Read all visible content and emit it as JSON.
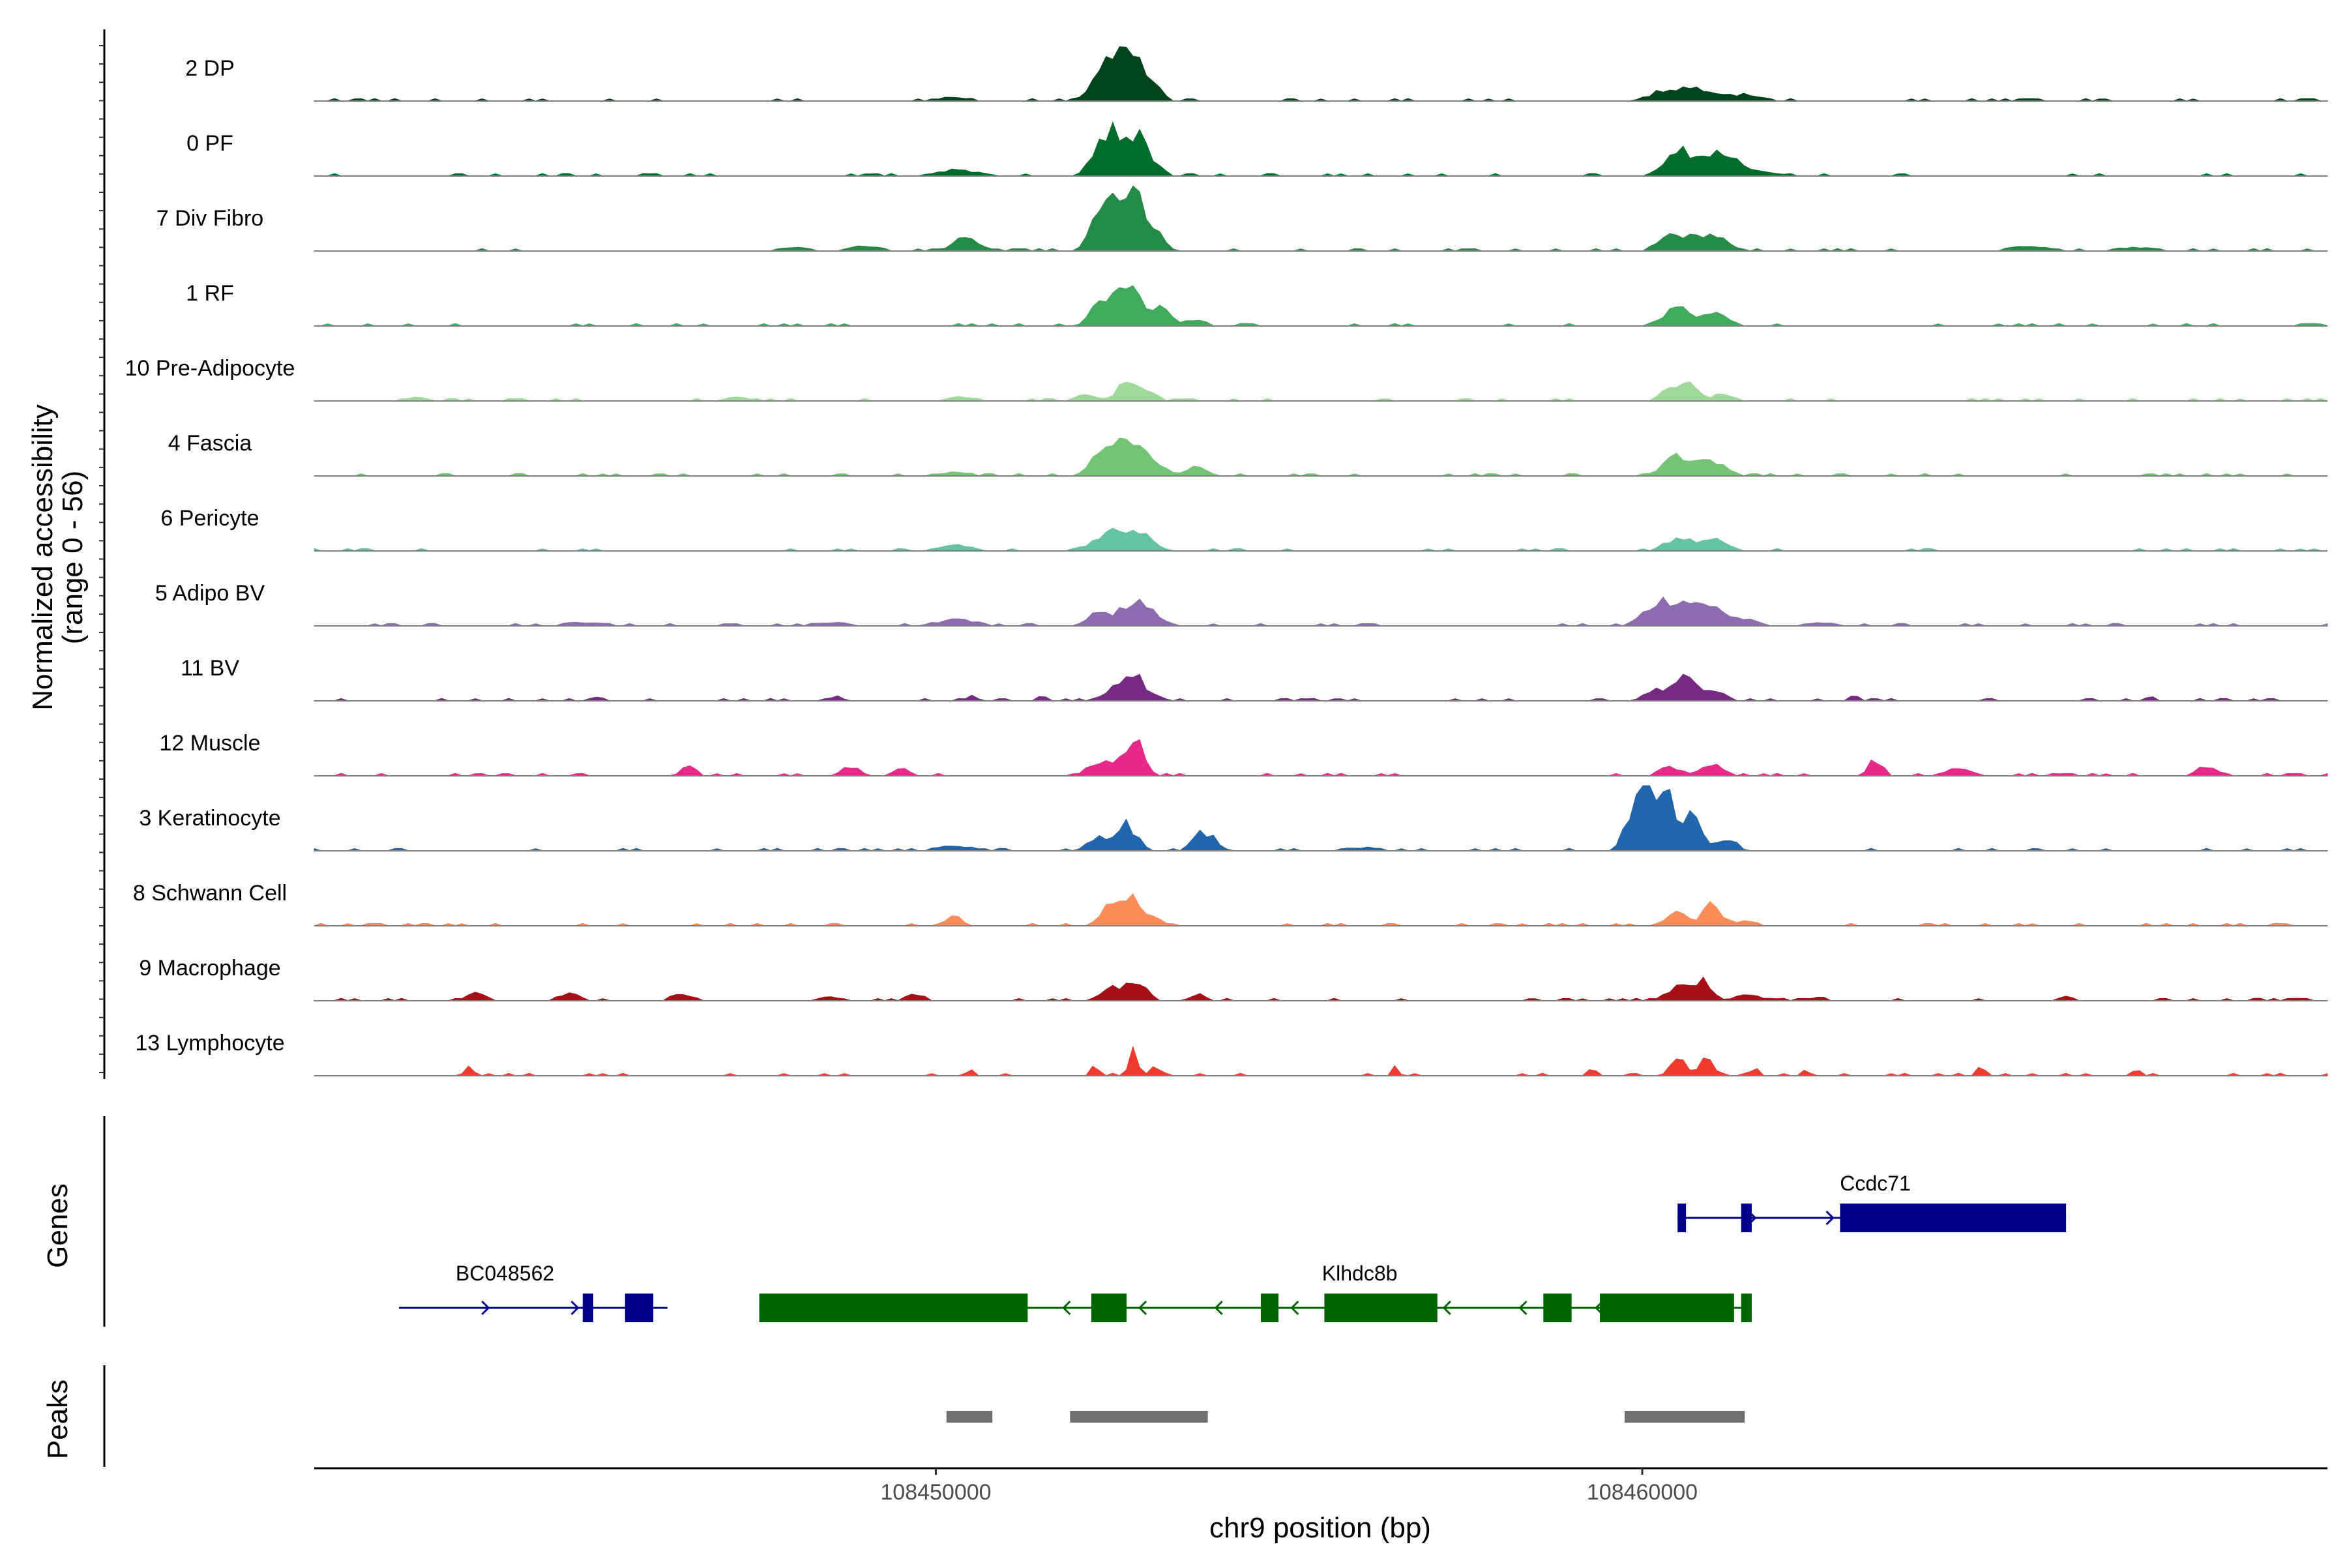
{
  "chart_data": {
    "type": "area",
    "title": "",
    "xlabel": "chr9 position (bp)",
    "ylabel_line1": "Normalized accessibility",
    "ylabel_line2": "(range 0 - 56)",
    "ylim": [
      0,
      56
    ],
    "xlim": [
      108441200,
      108469700
    ],
    "x_ticks": [
      108450000,
      108460000
    ],
    "x_tick_labels": [
      "108450000",
      "108460000"
    ],
    "tracks": [
      {
        "name": "2 DP",
        "color": "#00441b",
        "peaks": [
          [
            108452400,
            30,
            180
          ],
          [
            108452750,
            34,
            160
          ],
          [
            108453050,
            12,
            150
          ],
          [
            108450250,
            3,
            300
          ],
          [
            108460400,
            10,
            250
          ],
          [
            108460900,
            9,
            230
          ],
          [
            108461500,
            5,
            250
          ]
        ]
      },
      {
        "name": "0 PF",
        "color": "#006d2c",
        "peaks": [
          [
            108452400,
            36,
            170
          ],
          [
            108452780,
            32,
            170
          ],
          [
            108453050,
            10,
            140
          ],
          [
            108450300,
            5,
            320
          ],
          [
            108460500,
            22,
            200
          ],
          [
            108461100,
            20,
            200
          ],
          [
            108461600,
            4,
            300
          ]
        ]
      },
      {
        "name": "7 Div Fibro",
        "color": "#238b45",
        "peaks": [
          [
            108452400,
            46,
            160
          ],
          [
            108452800,
            52,
            140
          ],
          [
            108453100,
            16,
            130
          ],
          [
            108450450,
            12,
            180
          ],
          [
            108460450,
            16,
            200
          ],
          [
            108461000,
            16,
            200
          ],
          [
            108449000,
            4,
            250
          ],
          [
            108448000,
            3,
            250
          ],
          [
            108465500,
            4,
            300
          ],
          [
            108467000,
            3,
            300
          ]
        ]
      },
      {
        "name": "1 RF",
        "color": "#41ab5d",
        "peaks": [
          [
            108452400,
            24,
            170
          ],
          [
            108452750,
            34,
            150
          ],
          [
            108453150,
            16,
            140
          ],
          [
            108453650,
            6,
            150
          ],
          [
            108460500,
            16,
            200
          ],
          [
            108461050,
            12,
            160
          ]
        ]
      },
      {
        "name": "10 Pre-Adipocyte",
        "color": "#a1d99b",
        "peaks": [
          [
            108452100,
            5,
            150
          ],
          [
            108452700,
            14,
            150
          ],
          [
            108453000,
            6,
            150
          ],
          [
            108460400,
            10,
            150
          ],
          [
            108460650,
            16,
            120
          ],
          [
            108461150,
            6,
            150
          ],
          [
            108450350,
            4,
            200
          ],
          [
            108442600,
            3,
            200
          ],
          [
            108447200,
            3,
            200
          ]
        ]
      },
      {
        "name": "4 Fascia",
        "color": "#74c476",
        "peaks": [
          [
            108452400,
            26,
            180
          ],
          [
            108452750,
            30,
            170
          ],
          [
            108453100,
            10,
            150
          ],
          [
            108453700,
            8,
            150
          ],
          [
            108460500,
            16,
            200
          ],
          [
            108461000,
            12,
            200
          ],
          [
            108450250,
            3,
            300
          ]
        ]
      },
      {
        "name": "6 Pericyte",
        "color": "#66c2a4",
        "peaks": [
          [
            108452350,
            10,
            200
          ],
          [
            108452650,
            16,
            170
          ],
          [
            108453000,
            10,
            150
          ],
          [
            108450300,
            5,
            250
          ],
          [
            108460500,
            10,
            200
          ],
          [
            108461000,
            10,
            200
          ]
        ]
      },
      {
        "name": "5 Adipo BV",
        "color": "#8c6bb1",
        "peaks": [
          [
            108452350,
            12,
            170
          ],
          [
            108452800,
            22,
            150
          ],
          [
            108453100,
            8,
            140
          ],
          [
            108450300,
            5,
            300
          ],
          [
            108460300,
            20,
            250
          ],
          [
            108460850,
            18,
            220
          ],
          [
            108461400,
            6,
            220
          ],
          [
            108445000,
            3,
            300
          ],
          [
            108448500,
            3,
            300
          ],
          [
            108462500,
            3,
            250
          ]
        ]
      },
      {
        "name": "11 BV",
        "color": "#762a83",
        "peaks": [
          [
            108452500,
            10,
            150
          ],
          [
            108452800,
            24,
            120
          ],
          [
            108453100,
            6,
            100
          ],
          [
            108460200,
            10,
            150
          ],
          [
            108460600,
            24,
            130
          ],
          [
            108461000,
            10,
            150
          ],
          [
            108448600,
            4,
            80
          ],
          [
            108450500,
            4,
            80
          ],
          [
            108451500,
            4,
            80
          ],
          [
            108445200,
            4,
            80
          ],
          [
            108463000,
            4,
            80
          ],
          [
            108467200,
            4,
            80
          ]
        ]
      },
      {
        "name": "12 Muscle",
        "color": "#e7298a",
        "peaks": [
          [
            108452300,
            12,
            150
          ],
          [
            108452850,
            26,
            110
          ],
          [
            108452600,
            14,
            100
          ],
          [
            108448800,
            8,
            120
          ],
          [
            108449500,
            6,
            120
          ],
          [
            108446500,
            10,
            100
          ],
          [
            108461000,
            10,
            150
          ],
          [
            108460400,
            8,
            150
          ],
          [
            108463300,
            14,
            100
          ],
          [
            108464500,
            8,
            150
          ],
          [
            108468000,
            8,
            150
          ]
        ]
      },
      {
        "name": "3 Keratinocyte",
        "color": "#2166ac",
        "peaks": [
          [
            108460000,
            56,
            170
          ],
          [
            108460350,
            40,
            140
          ],
          [
            108460700,
            30,
            130
          ],
          [
            108461200,
            12,
            120
          ],
          [
            108452700,
            22,
            150
          ],
          [
            108452300,
            10,
            150
          ],
          [
            108453800,
            16,
            150
          ],
          [
            108450300,
            4,
            300
          ],
          [
            108456000,
            3,
            300
          ]
        ]
      },
      {
        "name": "8 Schwann Cell",
        "color": "#fc8d59",
        "peaks": [
          [
            108452500,
            20,
            150
          ],
          [
            108452800,
            24,
            130
          ],
          [
            108453100,
            6,
            120
          ],
          [
            108450250,
            8,
            130
          ],
          [
            108460500,
            14,
            150
          ],
          [
            108461000,
            18,
            130
          ],
          [
            108461500,
            4,
            150
          ]
        ]
      },
      {
        "name": "9 Macrophage",
        "color": "#a50f15",
        "peaks": [
          [
            108452500,
            12,
            150
          ],
          [
            108452850,
            18,
            130
          ],
          [
            108453700,
            6,
            100
          ],
          [
            108460500,
            12,
            150
          ],
          [
            108460850,
            18,
            130
          ],
          [
            108461500,
            6,
            150
          ],
          [
            108443500,
            6,
            150
          ],
          [
            108444800,
            6,
            150
          ],
          [
            108446400,
            6,
            150
          ],
          [
            108448500,
            4,
            150
          ],
          [
            108449700,
            5,
            150
          ],
          [
            108462500,
            4,
            100
          ],
          [
            108466000,
            4,
            100
          ]
        ]
      },
      {
        "name": "13 Lymphocyte",
        "color": "#ef3b2c",
        "peaks": [
          [
            108452250,
            8,
            60
          ],
          [
            108452800,
            22,
            60
          ],
          [
            108453100,
            8,
            60
          ],
          [
            108450500,
            6,
            60
          ],
          [
            108443400,
            10,
            50
          ],
          [
            108456500,
            8,
            50
          ],
          [
            108460500,
            16,
            100
          ],
          [
            108460900,
            14,
            100
          ],
          [
            108459300,
            6,
            60
          ],
          [
            108461600,
            6,
            60
          ],
          [
            108462300,
            6,
            60
          ],
          [
            108464800,
            8,
            50
          ],
          [
            108467000,
            6,
            50
          ]
        ]
      }
    ],
    "genes": {
      "title": "Genes",
      "items": [
        {
          "name": "Ccdc71",
          "strand": "+",
          "color": "#00008b",
          "start": 108460500,
          "end": 108466000,
          "row": 1,
          "exons": [
            [
              108460500,
              108460620
            ],
            [
              108461400,
              108461550
            ],
            [
              108462800,
              108466000
            ]
          ]
        },
        {
          "name": "BC048562",
          "strand": "+",
          "color": "#00008b",
          "start": 108442400,
          "end": 108446200,
          "row": 2,
          "exons": [
            [
              108445000,
              108445150
            ],
            [
              108445600,
              108446000
            ]
          ]
        },
        {
          "name": "Klhdc8b",
          "strand": "-",
          "color": "#006400",
          "start": 108447500,
          "end": 108461500,
          "row": 2,
          "exons": [
            [
              108447500,
              108451300
            ],
            [
              108452200,
              108452700
            ],
            [
              108454600,
              108454850
            ],
            [
              108455500,
              108457100
            ],
            [
              108458600,
              108459000
            ],
            [
              108459400,
              108461300
            ],
            [
              108461400,
              108461550
            ]
          ]
        }
      ]
    },
    "peaks_track": {
      "title": "Peaks",
      "color": "#707070",
      "regions": [
        [
          108450150,
          108450800
        ],
        [
          108451900,
          108453850
        ],
        [
          108459750,
          108461450
        ]
      ]
    }
  }
}
